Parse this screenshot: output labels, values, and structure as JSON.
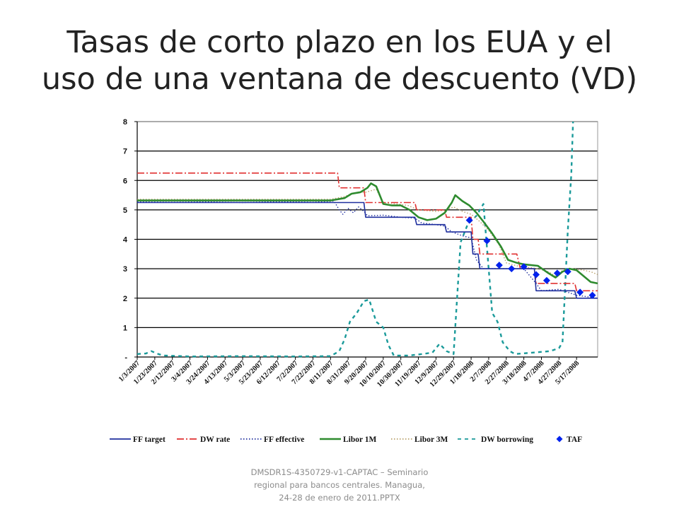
{
  "slide": {
    "title_lines": [
      "Tasas de corto plazo en los EUA y el",
      "uso de una ventana de descuento (VD)"
    ],
    "footer_lines": [
      "DMSDR1S-4350729-v1-CAPTAC – Seminario",
      "regional para bancos centrales. Managua,",
      "24-28 de enero de 2011.PPTX"
    ]
  },
  "chart_data": {
    "type": "line",
    "title": "",
    "xlabel": "",
    "ylabel": "",
    "ylim": [
      0,
      8
    ],
    "y_ticks": [
      0,
      1,
      2,
      3,
      4,
      5,
      6,
      7,
      8
    ],
    "y_tick_labels": [
      "-",
      "1",
      "2",
      "3",
      "4",
      "5",
      "6",
      "7",
      "8"
    ],
    "x_tick_labels": [
      "1/3/2007",
      "1/23/2007",
      "2/12/2007",
      "3/4/2007",
      "3/24/2007",
      "4/13/2007",
      "5/3/2007",
      "5/23/2007",
      "6/12/2007",
      "7/2/2007",
      "7/22/2007",
      "8/11/2007",
      "8/31/2007",
      "9/20/2007",
      "10/10/2007",
      "10/30/2007",
      "11/19/2007",
      "12/9/2007",
      "12/29/2007",
      "1/18/2008",
      "2/7/2008",
      "2/27/2008",
      "3/18/2008",
      "4/7/2008",
      "4/27/2008",
      "5/17/2008"
    ],
    "x_axis": "index of x_tick_labels (20-day steps)",
    "xlim": [
      0,
      26.2
    ],
    "grid": "horizontal",
    "legend_position": "bottom",
    "series": [
      {
        "name": "FF target",
        "color": "#1f2f9e",
        "style": "solid",
        "points": [
          [
            0,
            5.25
          ],
          [
            11.5,
            5.25
          ],
          [
            11.9,
            5.25
          ],
          [
            12.0,
            5.25
          ],
          [
            12.9,
            5.25
          ],
          [
            13.0,
            4.75
          ],
          [
            14.5,
            4.75
          ],
          [
            14.6,
            4.75
          ],
          [
            15.8,
            4.75
          ],
          [
            15.9,
            4.5
          ],
          [
            17.5,
            4.5
          ],
          [
            17.6,
            4.25
          ],
          [
            19.0,
            4.25
          ],
          [
            19.1,
            3.5
          ],
          [
            19.4,
            3.5
          ],
          [
            19.5,
            3.0
          ],
          [
            22.6,
            3.0
          ],
          [
            22.7,
            2.25
          ],
          [
            24.9,
            2.25
          ],
          [
            25.0,
            2.0
          ],
          [
            26.2,
            2.0
          ]
        ]
      },
      {
        "name": "DW rate",
        "color": "#e03030",
        "style": "dashdot",
        "points": [
          [
            0,
            6.25
          ],
          [
            11.1,
            6.25
          ],
          [
            11.2,
            6.25
          ],
          [
            11.4,
            6.25
          ],
          [
            11.5,
            5.75
          ],
          [
            12.9,
            5.75
          ],
          [
            13.0,
            5.25
          ],
          [
            15.8,
            5.25
          ],
          [
            15.9,
            5.0
          ],
          [
            17.5,
            5.0
          ],
          [
            17.6,
            4.75
          ],
          [
            19.0,
            4.75
          ],
          [
            19.1,
            4.0
          ],
          [
            19.4,
            4.0
          ],
          [
            19.5,
            3.5
          ],
          [
            21.6,
            3.5
          ],
          [
            21.8,
            3.0
          ],
          [
            22.6,
            3.0
          ],
          [
            22.7,
            2.5
          ],
          [
            24.9,
            2.5
          ],
          [
            25.0,
            2.25
          ],
          [
            26.2,
            2.25
          ]
        ]
      },
      {
        "name": "FF effective",
        "color": "#1f2f9e",
        "style": "dotted",
        "points": [
          [
            0,
            5.27
          ],
          [
            2.0,
            5.26
          ],
          [
            4.0,
            5.27
          ],
          [
            6.0,
            5.25
          ],
          [
            8.0,
            5.28
          ],
          [
            10.0,
            5.26
          ],
          [
            11.2,
            5.3
          ],
          [
            11.5,
            5.0
          ],
          [
            11.7,
            4.85
          ],
          [
            12.0,
            5.05
          ],
          [
            12.3,
            4.9
          ],
          [
            12.6,
            5.1
          ],
          [
            12.9,
            4.95
          ],
          [
            13.1,
            4.8
          ],
          [
            14.0,
            4.82
          ],
          [
            15.0,
            4.75
          ],
          [
            15.8,
            4.72
          ],
          [
            16.2,
            4.55
          ],
          [
            17.0,
            4.5
          ],
          [
            17.5,
            4.45
          ],
          [
            17.9,
            4.25
          ],
          [
            18.6,
            4.1
          ],
          [
            19.0,
            4.05
          ],
          [
            19.3,
            3.3
          ],
          [
            19.7,
            3.0
          ],
          [
            21.0,
            3.0
          ],
          [
            22.0,
            3.0
          ],
          [
            22.7,
            2.5
          ],
          [
            23.0,
            2.25
          ],
          [
            24.0,
            2.3
          ],
          [
            25.0,
            2.1
          ],
          [
            26.2,
            2.0
          ]
        ]
      },
      {
        "name": "Libor 1M",
        "color": "#2e8b2e",
        "style": "solid",
        "points": [
          [
            0,
            5.32
          ],
          [
            6,
            5.32
          ],
          [
            11,
            5.32
          ],
          [
            11.8,
            5.4
          ],
          [
            12.2,
            5.55
          ],
          [
            12.7,
            5.6
          ],
          [
            13.1,
            5.75
          ],
          [
            13.3,
            5.9
          ],
          [
            13.6,
            5.8
          ],
          [
            14.0,
            5.2
          ],
          [
            14.5,
            5.15
          ],
          [
            15.0,
            5.15
          ],
          [
            15.5,
            5.0
          ],
          [
            16.0,
            4.75
          ],
          [
            16.5,
            4.65
          ],
          [
            17.0,
            4.7
          ],
          [
            17.5,
            4.9
          ],
          [
            17.9,
            5.25
          ],
          [
            18.1,
            5.5
          ],
          [
            18.5,
            5.3
          ],
          [
            18.9,
            5.15
          ],
          [
            19.3,
            4.9
          ],
          [
            19.7,
            4.6
          ],
          [
            20.2,
            4.2
          ],
          [
            20.7,
            3.75
          ],
          [
            21.1,
            3.3
          ],
          [
            21.6,
            3.2
          ],
          [
            22.0,
            3.15
          ],
          [
            22.8,
            3.1
          ],
          [
            23.4,
            2.85
          ],
          [
            23.8,
            2.7
          ],
          [
            24.2,
            2.9
          ],
          [
            24.6,
            3.0
          ],
          [
            25.0,
            2.95
          ],
          [
            25.4,
            2.75
          ],
          [
            25.8,
            2.55
          ],
          [
            26.2,
            2.5
          ]
        ]
      },
      {
        "name": "Libor 3M",
        "color": "#b8a06a",
        "style": "dotted",
        "points": [
          [
            0,
            5.36
          ],
          [
            6,
            5.36
          ],
          [
            11,
            5.36
          ],
          [
            11.8,
            5.45
          ],
          [
            12.2,
            5.55
          ],
          [
            12.6,
            5.6
          ],
          [
            13.0,
            5.6
          ],
          [
            13.6,
            5.7
          ],
          [
            14.0,
            5.25
          ],
          [
            14.8,
            5.2
          ],
          [
            15.4,
            5.15
          ],
          [
            16.0,
            5.0
          ],
          [
            17.0,
            4.95
          ],
          [
            17.6,
            5.0
          ],
          [
            18.0,
            5.1
          ],
          [
            18.5,
            4.95
          ],
          [
            19.0,
            4.85
          ],
          [
            19.5,
            4.6
          ],
          [
            20.0,
            4.3
          ],
          [
            20.6,
            3.8
          ],
          [
            21.0,
            3.2
          ],
          [
            21.6,
            3.1
          ],
          [
            22.2,
            3.05
          ],
          [
            22.8,
            3.0
          ],
          [
            23.4,
            2.9
          ],
          [
            23.8,
            2.75
          ],
          [
            24.2,
            2.95
          ],
          [
            24.8,
            3.0
          ],
          [
            25.4,
            2.95
          ],
          [
            25.8,
            2.9
          ],
          [
            26.2,
            2.8
          ]
        ]
      },
      {
        "name": "DW borrowing",
        "color": "#1a9a9a",
        "style": "dashed",
        "points": [
          [
            0,
            0.1
          ],
          [
            0.5,
            0.12
          ],
          [
            0.8,
            0.2
          ],
          [
            1.2,
            0.1
          ],
          [
            1.5,
            0.05
          ],
          [
            3,
            0.02
          ],
          [
            6,
            0.03
          ],
          [
            9,
            0.02
          ],
          [
            11,
            0.03
          ],
          [
            11.5,
            0.2
          ],
          [
            11.8,
            0.6
          ],
          [
            12.1,
            1.2
          ],
          [
            12.5,
            1.5
          ],
          [
            12.9,
            1.9
          ],
          [
            13.2,
            1.95
          ],
          [
            13.6,
            1.2
          ],
          [
            14.0,
            1.0
          ],
          [
            14.3,
            0.4
          ],
          [
            14.6,
            0.05
          ],
          [
            15.5,
            0.05
          ],
          [
            16.2,
            0.1
          ],
          [
            16.8,
            0.15
          ],
          [
            17.2,
            0.45
          ],
          [
            17.6,
            0.2
          ],
          [
            18.0,
            0.1
          ],
          [
            18.4,
            3.9
          ],
          [
            18.8,
            4.5
          ],
          [
            19.3,
            4.8
          ],
          [
            19.7,
            5.2
          ],
          [
            20.0,
            3.0
          ],
          [
            20.2,
            1.5
          ],
          [
            20.5,
            1.2
          ],
          [
            20.8,
            0.5
          ],
          [
            21.2,
            0.2
          ],
          [
            21.5,
            0.1
          ],
          [
            22.5,
            0.15
          ],
          [
            23.5,
            0.2
          ],
          [
            24.0,
            0.3
          ],
          [
            24.2,
            0.5
          ],
          [
            24.5,
            4.3
          ],
          [
            24.7,
            6.2
          ],
          [
            24.8,
            8.0
          ]
        ]
      },
      {
        "name": "TAF",
        "color": "#0022ee",
        "style": "marker",
        "points": [
          [
            18.9,
            4.65
          ],
          [
            19.9,
            3.95
          ],
          [
            20.6,
            3.12
          ],
          [
            21.3,
            3.0
          ],
          [
            22.0,
            3.07
          ],
          [
            22.7,
            2.8
          ],
          [
            23.3,
            2.6
          ],
          [
            23.9,
            2.85
          ],
          [
            24.5,
            2.9
          ],
          [
            25.2,
            2.2
          ],
          [
            25.9,
            2.1
          ]
        ]
      }
    ]
  }
}
